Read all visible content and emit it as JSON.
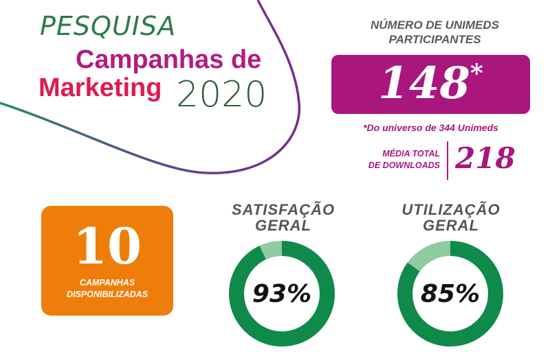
{
  "header": {
    "pesquisa": "PESQUISA",
    "line1": "Campanhas de",
    "line2": "Marketing",
    "year": "2020"
  },
  "participants": {
    "title_line1": "NÚMERO DE UNIMEDS",
    "title_line2": "PARTICIPANTES",
    "value": "148",
    "asterisk": "*",
    "footnote": "*Do universo de 344 Unimeds",
    "color": "#a8167e"
  },
  "downloads": {
    "label_line1": "MÉDIA TOTAL",
    "label_line2": "DE DOWNLOADS",
    "value": "218"
  },
  "campaigns": {
    "value": "10",
    "label_line1": "CAMPANHAS",
    "label_line2": "DISPONIBILIZADAS",
    "color": "#ef7d0a"
  },
  "gauges": [
    {
      "title_line1": "SATISFAÇÃO",
      "title_line2": "GERAL",
      "label": "93%",
      "percent": 93
    },
    {
      "title_line1": "UTILIZAÇÃO",
      "title_line2": "GERAL",
      "label": "85%",
      "percent": 85
    }
  ],
  "colors": {
    "gauge_fill": "#0f8a4a",
    "gauge_rest": "#8fcaa0",
    "title_magenta": "#b31b7f",
    "title_red": "#e01a4f",
    "title_green": "#2e7a4a"
  }
}
